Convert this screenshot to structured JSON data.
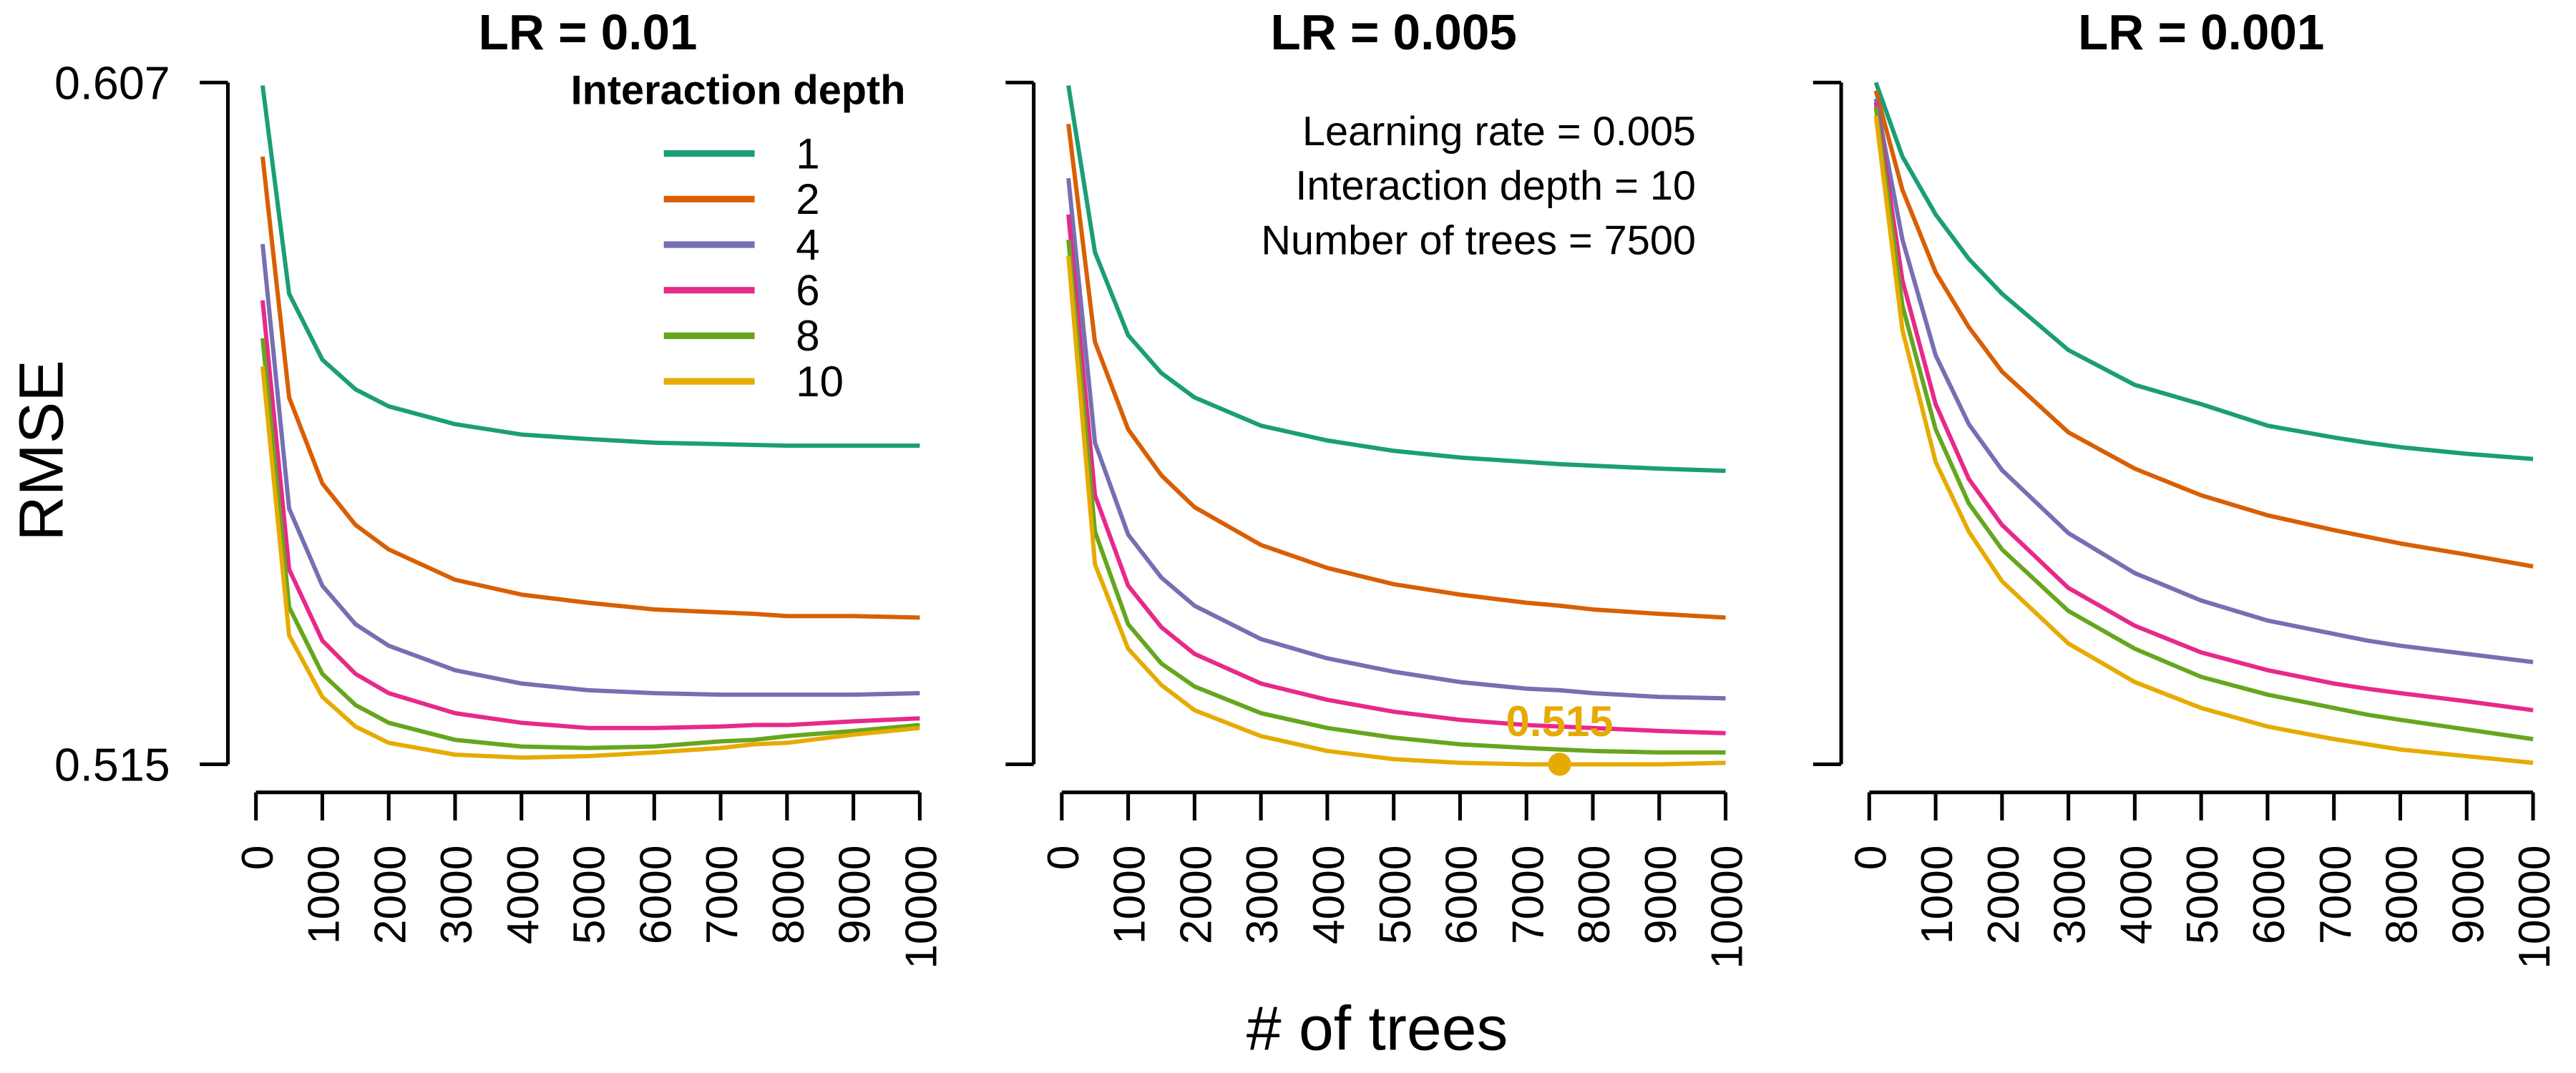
{
  "chart_data": [
    {
      "type": "line",
      "title": "LR = 0.01",
      "ylabel": "RMSE",
      "legend_title": "Interaction depth",
      "legend": "top-right",
      "x": [
        100,
        500,
        1000,
        1500,
        2000,
        3000,
        4000,
        5000,
        6000,
        7000,
        7500,
        8000,
        9000,
        10000
      ],
      "xlim": [
        0,
        10000
      ],
      "xticks": [
        0,
        1000,
        2000,
        3000,
        4000,
        5000,
        6000,
        7000,
        8000,
        9000,
        10000
      ],
      "ylim": [
        0.515,
        0.607
      ],
      "yticks": [
        0.607,
        0.515
      ],
      "series": [
        {
          "name": "1",
          "color": "#1b9e77",
          "values": [
            0.6066,
            0.5785,
            0.5696,
            0.5656,
            0.5633,
            0.5609,
            0.5595,
            0.5589,
            0.5584,
            0.5582,
            0.5581,
            0.558,
            0.558,
            0.558
          ]
        },
        {
          "name": "2",
          "color": "#d95f02",
          "values": [
            0.597,
            0.5645,
            0.5529,
            0.5473,
            0.544,
            0.5399,
            0.5379,
            0.5368,
            0.5359,
            0.5355,
            0.5353,
            0.535,
            0.535,
            0.5348
          ]
        },
        {
          "name": "4",
          "color": "#7570b3",
          "values": [
            0.5852,
            0.5495,
            0.5391,
            0.5339,
            0.531,
            0.5277,
            0.5259,
            0.525,
            0.5246,
            0.5244,
            0.5244,
            0.5244,
            0.5244,
            0.5246
          ]
        },
        {
          "name": "6",
          "color": "#e7298a",
          "values": [
            0.5776,
            0.5413,
            0.5317,
            0.5272,
            0.5246,
            0.5219,
            0.5206,
            0.5199,
            0.5199,
            0.5201,
            0.5203,
            0.5203,
            0.5208,
            0.5212
          ]
        },
        {
          "name": "8",
          "color": "#66a61e",
          "values": [
            0.5725,
            0.5362,
            0.5272,
            0.523,
            0.5206,
            0.5183,
            0.5174,
            0.5172,
            0.5174,
            0.5181,
            0.5183,
            0.5188,
            0.5195,
            0.5203
          ]
        },
        {
          "name": "10",
          "color": "#e6ab02",
          "values": [
            0.5687,
            0.5324,
            0.5241,
            0.5201,
            0.5179,
            0.5163,
            0.5159,
            0.5161,
            0.5166,
            0.5172,
            0.5177,
            0.5179,
            0.519,
            0.5199
          ]
        }
      ]
    },
    {
      "type": "line",
      "title": "LR = 0.005",
      "xlabel": "# of trees",
      "annotations": [
        "Learning rate = 0.005",
        "Interaction depth = 10",
        "Number of trees = 7500"
      ],
      "highlight": {
        "x": 7500,
        "y": 0.515,
        "color": "#e6ab02"
      },
      "x": [
        100,
        500,
        1000,
        1500,
        2000,
        3000,
        4000,
        5000,
        6000,
        7000,
        7500,
        8000,
        9000,
        10000
      ],
      "xlim": [
        0,
        10000
      ],
      "xticks": [
        0,
        1000,
        2000,
        3000,
        4000,
        5000,
        6000,
        7000,
        8000,
        9000,
        10000
      ],
      "ylim": [
        0.515,
        0.607
      ],
      "series": [
        {
          "name": "1",
          "color": "#1b9e77",
          "values": [
            0.6066,
            0.5841,
            0.5729,
            0.5678,
            0.5645,
            0.5607,
            0.5587,
            0.5573,
            0.5564,
            0.5558,
            0.5555,
            0.5553,
            0.5549,
            0.5546
          ]
        },
        {
          "name": "2",
          "color": "#d95f02",
          "values": [
            0.6014,
            0.572,
            0.5602,
            0.554,
            0.5497,
            0.5446,
            0.5415,
            0.5393,
            0.5379,
            0.5368,
            0.5364,
            0.5359,
            0.5353,
            0.5348
          ]
        },
        {
          "name": "4",
          "color": "#7570b3",
          "values": [
            0.5941,
            0.5584,
            0.546,
            0.5402,
            0.5364,
            0.5319,
            0.5293,
            0.5275,
            0.5261,
            0.5252,
            0.525,
            0.5246,
            0.5241,
            0.5239
          ]
        },
        {
          "name": "6",
          "color": "#e7298a",
          "values": [
            0.5892,
            0.5513,
            0.5391,
            0.5335,
            0.5299,
            0.5259,
            0.5237,
            0.5221,
            0.521,
            0.5203,
            0.5201,
            0.5199,
            0.5195,
            0.5192
          ]
        },
        {
          "name": "8",
          "color": "#66a61e",
          "values": [
            0.5858,
            0.5464,
            0.5339,
            0.5286,
            0.5255,
            0.5219,
            0.5199,
            0.5186,
            0.5177,
            0.5172,
            0.517,
            0.5168,
            0.5166,
            0.5166
          ]
        },
        {
          "name": "10",
          "color": "#e6ab02",
          "values": [
            0.5836,
            0.542,
            0.5306,
            0.5257,
            0.5223,
            0.5188,
            0.5168,
            0.5157,
            0.5152,
            0.515,
            0.515,
            0.515,
            0.515,
            0.5152
          ]
        }
      ]
    },
    {
      "type": "line",
      "title": "LR = 0.001",
      "x": [
        100,
        500,
        1000,
        1500,
        2000,
        3000,
        4000,
        5000,
        6000,
        7000,
        7500,
        8000,
        9000,
        10000
      ],
      "xlim": [
        0,
        10000
      ],
      "xticks": [
        0,
        1000,
        2000,
        3000,
        4000,
        5000,
        6000,
        7000,
        8000,
        9000,
        10000
      ],
      "ylim": [
        0.515,
        0.607
      ],
      "series": [
        {
          "name": "1",
          "color": "#1b9e77",
          "values": [
            0.607,
            0.597,
            0.5892,
            0.5832,
            0.5785,
            0.5709,
            0.5662,
            0.5636,
            0.5607,
            0.5591,
            0.5584,
            0.5578,
            0.5569,
            0.5562
          ]
        },
        {
          "name": "2",
          "color": "#d95f02",
          "values": [
            0.6059,
            0.5925,
            0.5814,
            0.574,
            0.568,
            0.5598,
            0.5549,
            0.5513,
            0.5486,
            0.5466,
            0.5457,
            0.5448,
            0.5433,
            0.5417
          ]
        },
        {
          "name": "4",
          "color": "#7570b3",
          "values": [
            0.6048,
            0.5858,
            0.5702,
            0.5609,
            0.5547,
            0.5462,
            0.5408,
            0.5371,
            0.5344,
            0.5326,
            0.5317,
            0.531,
            0.5299,
            0.5288
          ]
        },
        {
          "name": "6",
          "color": "#e7298a",
          "values": [
            0.6043,
            0.5803,
            0.5636,
            0.5535,
            0.5473,
            0.5388,
            0.5337,
            0.5301,
            0.5277,
            0.5259,
            0.5252,
            0.5246,
            0.5235,
            0.5223
          ]
        },
        {
          "name": "8",
          "color": "#66a61e",
          "values": [
            0.6037,
            0.5769,
            0.5602,
            0.5502,
            0.544,
            0.5357,
            0.5306,
            0.5268,
            0.5244,
            0.5226,
            0.5217,
            0.521,
            0.5197,
            0.5184
          ]
        },
        {
          "name": "10",
          "color": "#e6ab02",
          "values": [
            0.6025,
            0.5736,
            0.5558,
            0.5464,
            0.5397,
            0.5313,
            0.5261,
            0.5226,
            0.5201,
            0.5184,
            0.5177,
            0.517,
            0.5161,
            0.5152
          ]
        }
      ]
    }
  ]
}
